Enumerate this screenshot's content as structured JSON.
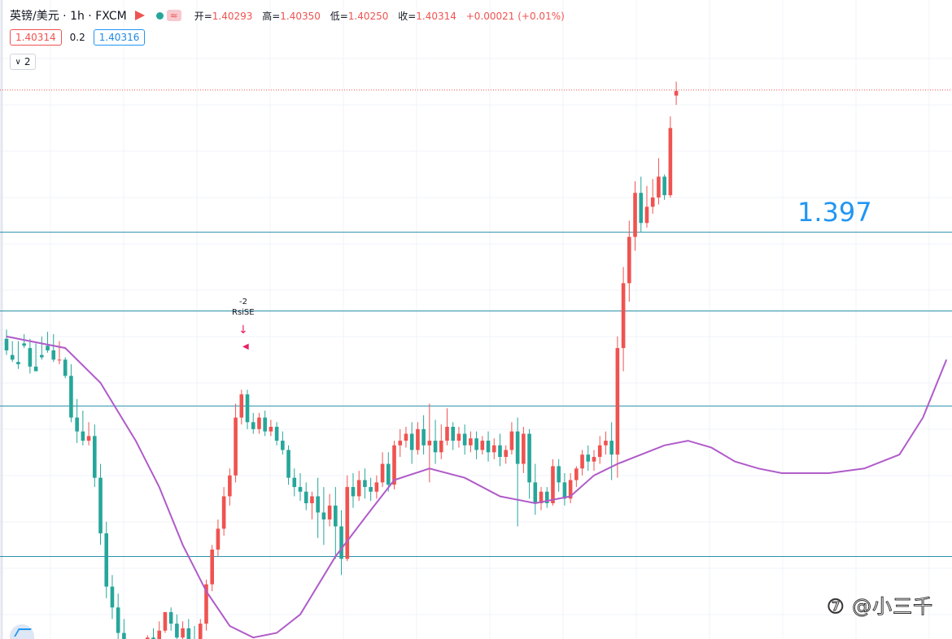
{
  "header": {
    "symbol": "英镑/美元 · 1h · FXCM",
    "open_label": "开=",
    "open": "1.40293",
    "high_label": "高=",
    "high": "1.40350",
    "low_label": "低=",
    "low": "1.40250",
    "close_label": "收=",
    "close": "1.40314",
    "change": "+0.00021 (+0.01%)"
  },
  "quote": {
    "bid": "1.40314",
    "spread": "0.2",
    "ask": "1.40316"
  },
  "legend": {
    "toggle_label": "2",
    "toggle_icon": "chevron-down-icon"
  },
  "level_label": "1.397",
  "annotation": {
    "count": "-2",
    "signal": "RsiSE"
  },
  "watermark": "⑦ @小三千",
  "colors": {
    "up": "#ef5350",
    "down": "#26a69a",
    "ma": "#b05bc9",
    "level": "#2a8fa8",
    "label": "#2196f3"
  },
  "chart_data": {
    "type": "candlestick",
    "timeframe": "1h",
    "ylim": [
      1.38,
      1.4045
    ],
    "horizontal_levels": [
      1.397,
      1.3936,
      1.3895,
      1.383
    ],
    "last_price": 1.40314,
    "moving_average": {
      "x": [
        0,
        4,
        10,
        16,
        22,
        26,
        30,
        34,
        38,
        42,
        46,
        50,
        56,
        62,
        66,
        72,
        78,
        84,
        90,
        96,
        100,
        104,
        108,
        112,
        116,
        120,
        124,
        128,
        132,
        136,
        140,
        146,
        152,
        156,
        160
      ],
      "y": [
        1.3925,
        1.3923,
        1.392,
        1.3905,
        1.388,
        1.386,
        1.3835,
        1.3815,
        1.38,
        1.3795,
        1.3797,
        1.3805,
        1.383,
        1.385,
        1.3863,
        1.3868,
        1.3864,
        1.3856,
        1.3853,
        1.3856,
        1.3865,
        1.387,
        1.3874,
        1.3878,
        1.388,
        1.3877,
        1.3871,
        1.3868,
        1.3866,
        1.3866,
        1.3866,
        1.3868,
        1.3874,
        1.389,
        1.3915
      ]
    },
    "candles": [
      [
        1.3924,
        1.3928,
        1.3919,
        1.3917
      ],
      [
        1.3917,
        1.3923,
        1.3915,
        1.3914
      ],
      [
        1.3914,
        1.3923,
        1.3913,
        1.3911
      ],
      [
        1.3922,
        1.3926,
        1.3921,
        1.392
      ],
      [
        1.392,
        1.3924,
        1.3912,
        1.3909
      ],
      [
        1.3912,
        1.3922,
        1.391,
        1.3911
      ],
      [
        1.3917,
        1.3925,
        1.3916,
        1.3915
      ],
      [
        1.3921,
        1.3927,
        1.3919,
        1.3918
      ],
      [
        1.3919,
        1.3926,
        1.3915,
        1.3914
      ],
      [
        1.3915,
        1.3923,
        1.3915,
        1.3913
      ],
      [
        1.3915,
        1.3916,
        1.3908,
        1.3907
      ],
      [
        1.3908,
        1.3913,
        1.389,
        1.3888
      ],
      [
        1.389,
        1.3898,
        1.3884,
        1.3879
      ],
      [
        1.3884,
        1.3893,
        1.388,
        1.3878
      ],
      [
        1.388,
        1.3888,
        1.3882,
        1.3878
      ],
      [
        1.3882,
        1.3887,
        1.3864,
        1.386
      ],
      [
        1.3864,
        1.387,
        1.384,
        1.3835
      ],
      [
        1.384,
        1.3845,
        1.3817,
        1.3812
      ],
      [
        1.3817,
        1.3822,
        1.3808,
        1.3803
      ],
      [
        1.3808,
        1.3814,
        1.3797,
        1.3792
      ],
      [
        1.3797,
        1.3803,
        1.3784,
        1.3781
      ],
      [
        1.3784,
        1.3791,
        1.3786,
        1.3783
      ],
      [
        1.3786,
        1.3792,
        1.3785,
        1.3783
      ],
      [
        1.3785,
        1.3793,
        1.379,
        1.3784
      ],
      [
        1.379,
        1.3796,
        1.3795,
        1.3786
      ],
      [
        1.3795,
        1.3799,
        1.3793,
        1.3789
      ],
      [
        1.3793,
        1.3802,
        1.3798,
        1.379
      ],
      [
        1.3798,
        1.3806,
        1.3806,
        1.3797
      ],
      [
        1.3806,
        1.3808,
        1.3801,
        1.3798
      ],
      [
        1.3801,
        1.3805,
        1.3795,
        1.3793
      ],
      [
        1.3795,
        1.3802,
        1.3799,
        1.3793
      ],
      [
        1.3799,
        1.3803,
        1.3794,
        1.3791
      ],
      [
        1.3794,
        1.38,
        1.3786,
        1.3782
      ],
      [
        1.3786,
        1.3803,
        1.3801,
        1.3785
      ],
      [
        1.3801,
        1.382,
        1.3818,
        1.3798
      ],
      [
        1.3818,
        1.3835,
        1.3833,
        1.3815
      ],
      [
        1.3833,
        1.3846,
        1.3842,
        1.383
      ],
      [
        1.3842,
        1.386,
        1.3856,
        1.3839
      ],
      [
        1.3856,
        1.3868,
        1.3865,
        1.3852
      ],
      [
        1.3865,
        1.3896,
        1.389,
        1.3862
      ],
      [
        1.389,
        1.3902,
        1.39,
        1.3887
      ],
      [
        1.39,
        1.3902,
        1.3888,
        1.3885
      ],
      [
        1.3888,
        1.3892,
        1.3885,
        1.3883
      ],
      [
        1.3885,
        1.3892,
        1.389,
        1.3883
      ],
      [
        1.389,
        1.3893,
        1.3884,
        1.3882
      ],
      [
        1.3884,
        1.3889,
        1.3886,
        1.3882
      ],
      [
        1.3886,
        1.3888,
        1.388,
        1.3878
      ],
      [
        1.388,
        1.3884,
        1.3876,
        1.3874
      ],
      [
        1.3876,
        1.3878,
        1.3864,
        1.3861
      ],
      [
        1.3864,
        1.3868,
        1.386,
        1.3856
      ],
      [
        1.386,
        1.3866,
        1.3858,
        1.3854
      ],
      [
        1.3858,
        1.3862,
        1.3853,
        1.385
      ],
      [
        1.3853,
        1.3858,
        1.3856,
        1.3846
      ],
      [
        1.3856,
        1.3864,
        1.3849,
        1.3838
      ],
      [
        1.3849,
        1.386,
        1.3846,
        1.3835
      ],
      [
        1.3846,
        1.3857,
        1.3852,
        1.3843
      ],
      [
        1.3852,
        1.386,
        1.3843,
        1.3829
      ],
      [
        1.3843,
        1.385,
        1.3829,
        1.3822
      ],
      [
        1.3829,
        1.3865,
        1.386,
        1.3828
      ],
      [
        1.386,
        1.3866,
        1.3856,
        1.3851
      ],
      [
        1.3856,
        1.3867,
        1.3863,
        1.3854
      ],
      [
        1.3863,
        1.3868,
        1.386,
        1.3855
      ],
      [
        1.386,
        1.3864,
        1.3858,
        1.3854
      ],
      [
        1.3858,
        1.3865,
        1.3862,
        1.3855
      ],
      [
        1.3862,
        1.3875,
        1.387,
        1.386
      ],
      [
        1.387,
        1.3875,
        1.3861,
        1.3858
      ],
      [
        1.3861,
        1.388,
        1.3878,
        1.3859
      ],
      [
        1.3878,
        1.3885,
        1.388,
        1.3873
      ],
      [
        1.388,
        1.3886,
        1.3883,
        1.3877
      ],
      [
        1.3883,
        1.3888,
        1.3876,
        1.387
      ],
      [
        1.3876,
        1.3888,
        1.3885,
        1.3874
      ],
      [
        1.3885,
        1.3891,
        1.3878,
        1.3874
      ],
      [
        1.3878,
        1.3896,
        1.388,
        1.3862
      ],
      [
        1.388,
        1.3889,
        1.3875,
        1.387
      ],
      [
        1.3875,
        1.3887,
        1.388,
        1.3872
      ],
      [
        1.388,
        1.3894,
        1.3886,
        1.3878
      ],
      [
        1.3886,
        1.3888,
        1.388,
        1.3876
      ],
      [
        1.388,
        1.3886,
        1.3883,
        1.3877
      ],
      [
        1.3883,
        1.3887,
        1.3878,
        1.3874
      ],
      [
        1.3878,
        1.3884,
        1.3881,
        1.3875
      ],
      [
        1.3881,
        1.3884,
        1.3876,
        1.3872
      ],
      [
        1.3876,
        1.3882,
        1.388,
        1.3874
      ],
      [
        1.388,
        1.3884,
        1.3875,
        1.3871
      ],
      [
        1.3875,
        1.3881,
        1.3878,
        1.3872
      ],
      [
        1.3878,
        1.3883,
        1.3873,
        1.3869
      ],
      [
        1.3873,
        1.3878,
        1.3876,
        1.387
      ],
      [
        1.3876,
        1.3888,
        1.3884,
        1.3874
      ],
      [
        1.3884,
        1.389,
        1.387,
        1.3843
      ],
      [
        1.387,
        1.3886,
        1.3883,
        1.3866
      ],
      [
        1.3883,
        1.3885,
        1.3862,
        1.3855
      ],
      [
        1.3862,
        1.387,
        1.3853,
        1.3848
      ],
      [
        1.3853,
        1.386,
        1.3858,
        1.385
      ],
      [
        1.3858,
        1.386,
        1.3853,
        1.3851
      ],
      [
        1.3853,
        1.3872,
        1.3869,
        1.3852
      ],
      [
        1.3869,
        1.3872,
        1.3862,
        1.3858
      ],
      [
        1.3862,
        1.3866,
        1.3855,
        1.3852
      ],
      [
        1.3855,
        1.3866,
        1.3863,
        1.3853
      ],
      [
        1.3863,
        1.3869,
        1.3868,
        1.386
      ],
      [
        1.3868,
        1.3876,
        1.3874,
        1.3865
      ],
      [
        1.3874,
        1.3878,
        1.3871,
        1.3867
      ],
      [
        1.3871,
        1.3876,
        1.3873,
        1.3867
      ],
      [
        1.3873,
        1.3882,
        1.3878,
        1.387
      ],
      [
        1.3878,
        1.3884,
        1.388,
        1.3874
      ],
      [
        1.388,
        1.3888,
        1.3874,
        1.3863
      ],
      [
        1.3874,
        1.3925,
        1.392,
        1.3864
      ],
      [
        1.392,
        1.3955,
        1.3948,
        1.391
      ],
      [
        1.3948,
        1.3975,
        1.3968,
        1.394
      ],
      [
        1.3968,
        1.3992,
        1.3987,
        1.3962
      ],
      [
        1.3987,
        1.3994,
        1.3974,
        1.397
      ],
      [
        1.3974,
        1.399,
        1.3981,
        1.3972
      ],
      [
        1.3981,
        1.3993,
        1.3985,
        1.3978
      ],
      [
        1.3985,
        1.4002,
        1.3994,
        1.3982
      ],
      [
        1.3994,
        1.3995,
        1.3986,
        1.3984
      ],
      [
        1.3986,
        1.402,
        1.4015,
        1.3985
      ],
      [
        1.4029,
        1.4035,
        1.4031,
        1.4025
      ]
    ]
  }
}
